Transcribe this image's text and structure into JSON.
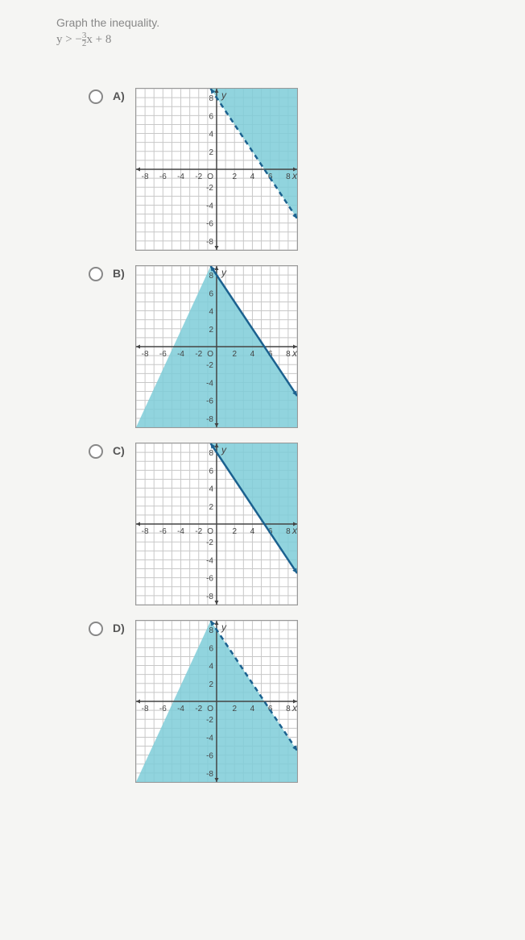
{
  "question": {
    "prompt": "Graph the inequality.",
    "inequality_html": "y > −<span style='display:inline-block;vertical-align:middle;font-size:11px;line-height:9px;text-align:center'><span style='display:block;border-bottom:1px solid #888;'>3</span><span style='display:block'>2</span></span>x + 8"
  },
  "graph_config": {
    "xmin": -9,
    "xmax": 9,
    "ymin": -9,
    "ymax": 9,
    "xticks": [
      -8,
      -6,
      -4,
      -2,
      0,
      2,
      4,
      6,
      8
    ],
    "yticks": [
      -8,
      -6,
      -4,
      -2,
      2,
      4,
      6,
      8
    ],
    "grid_color": "#c8c8c8",
    "axis_color": "#444",
    "tick_font_size": 10,
    "tick_color": "#444",
    "line_color": "#1b618f",
    "shade_color": "#7ecdd8",
    "line_slope": -1.5,
    "line_intercept": 8,
    "x_label": "x",
    "y_label": "y"
  },
  "options": [
    {
      "label": "A)",
      "shade": "above",
      "dashed": true
    },
    {
      "label": "B)",
      "shade": "below",
      "dashed": false
    },
    {
      "label": "C)",
      "shade": "above",
      "dashed": false
    },
    {
      "label": "D)",
      "shade": "below",
      "dashed": true
    }
  ]
}
